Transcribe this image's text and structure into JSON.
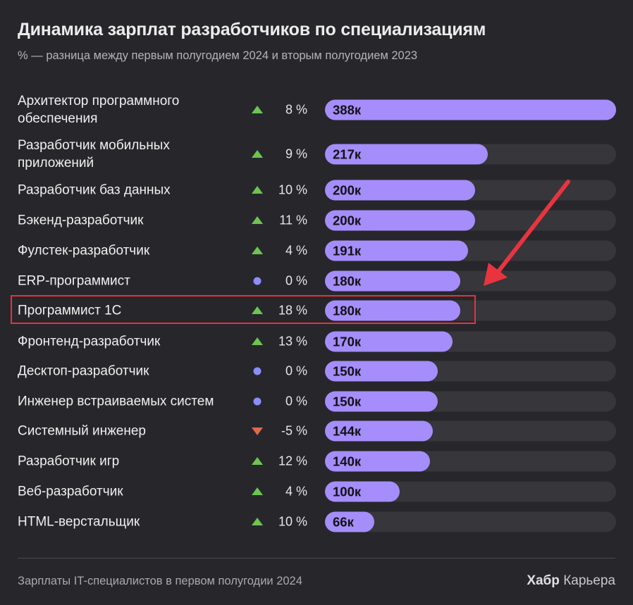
{
  "header": {
    "title": "Динамика зарплат разработчиков по специализациям",
    "subtitle": "% — разница между первым полугодием 2024 и вторым полугодием 2023"
  },
  "footer": {
    "source": "Зарплаты IT-специалистов в первом полугодии 2024",
    "brand_bold": "Хабр",
    "brand_rest": "Карьера"
  },
  "colors": {
    "up": "#6cc452",
    "flat": "#8c8dfb",
    "down": "#e0694e",
    "bar": "#a58dfb",
    "highlight": "#e4333d",
    "arrow": "#e8343f"
  },
  "chart_data": {
    "type": "bar",
    "orientation": "horizontal",
    "title": "Динамика зарплат разработчиков по специализациям",
    "subtitle": "% — разница между первым полугодием 2024 и вторым полугодием 2023",
    "xlim": [
      0,
      388
    ],
    "highlighted": "Программист 1С",
    "categories": [
      "Архитектор программного обеспечения",
      "Разработчик мобильных приложений",
      "Разработчик баз данных",
      "Бэкенд-разработчик",
      "Фулстек-разработчик",
      "ERP-программист",
      "Программист 1С",
      "Фронтенд-разработчик",
      "Десктоп-разработчик",
      "Инженер встраиваемых систем",
      "Системный инженер",
      "Разработчик игр",
      "Веб-разработчик",
      "HTML-верстальщик"
    ],
    "rows": [
      {
        "label": "Архитектор программного обеспечения",
        "value": 388,
        "value_label": "388к",
        "change": 8,
        "change_label": "8 %",
        "trend": "up"
      },
      {
        "label": "Разработчик мобильных приложений",
        "value": 217,
        "value_label": "217к",
        "change": 9,
        "change_label": "9 %",
        "trend": "up"
      },
      {
        "label": "Разработчик баз данных",
        "value": 200,
        "value_label": "200к",
        "change": 10,
        "change_label": "10 %",
        "trend": "up"
      },
      {
        "label": "Бэкенд-разработчик",
        "value": 200,
        "value_label": "200к",
        "change": 11,
        "change_label": "11 %",
        "trend": "up"
      },
      {
        "label": "Фулстек-разработчик",
        "value": 191,
        "value_label": "191к",
        "change": 4,
        "change_label": "4 %",
        "trend": "up"
      },
      {
        "label": "ERP-программист",
        "value": 180,
        "value_label": "180к",
        "change": 0,
        "change_label": "0 %",
        "trend": "flat"
      },
      {
        "label": "Программист 1С",
        "value": 180,
        "value_label": "180к",
        "change": 18,
        "change_label": "18 %",
        "trend": "up"
      },
      {
        "label": "Фронтенд-разработчик",
        "value": 170,
        "value_label": "170к",
        "change": 13,
        "change_label": "13 %",
        "trend": "up"
      },
      {
        "label": "Десктоп-разработчик",
        "value": 150,
        "value_label": "150к",
        "change": 0,
        "change_label": "0 %",
        "trend": "flat"
      },
      {
        "label": "Инженер встраиваемых систем",
        "value": 150,
        "value_label": "150к",
        "change": 0,
        "change_label": "0 %",
        "trend": "flat"
      },
      {
        "label": "Системный инженер",
        "value": 144,
        "value_label": "144к",
        "change": -5,
        "change_label": "-5 %",
        "trend": "down"
      },
      {
        "label": "Разработчик игр",
        "value": 140,
        "value_label": "140к",
        "change": 12,
        "change_label": "12 %",
        "trend": "up"
      },
      {
        "label": "Веб-разработчик",
        "value": 100,
        "value_label": "100к",
        "change": 4,
        "change_label": "4 %",
        "trend": "up"
      },
      {
        "label": "HTML-верстальщик",
        "value": 66,
        "value_label": "66к",
        "change": 10,
        "change_label": "10 %",
        "trend": "up"
      }
    ]
  }
}
